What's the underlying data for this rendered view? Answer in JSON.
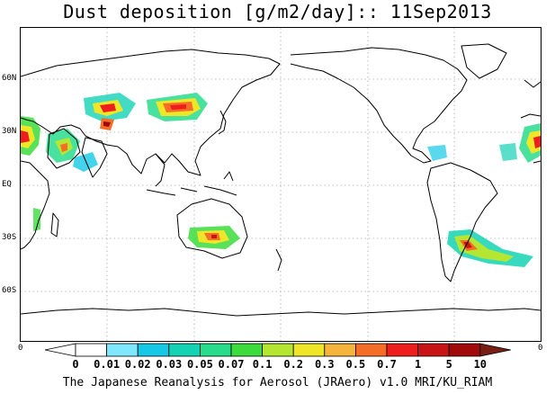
{
  "title": "Dust deposition [g/m2/day]:: 11Sep2013",
  "footer": "The Japanese Reanalysis for Aerosol (JRAero) v1.0 MRI/KU_RIAM",
  "lat_labels": [
    "60N",
    "30N",
    "EQ",
    "30S",
    "60S"
  ],
  "edge_labels": {
    "left": "0",
    "right": "0"
  },
  "colorbar": {
    "labels": [
      "0",
      "0.01",
      "0.02",
      "0.03",
      "0.05",
      "0.07",
      "0.1",
      "0.2",
      "0.3",
      "0.5",
      "0.7",
      "1",
      "5",
      "10"
    ],
    "colors": [
      "#ffffff",
      "#ffffff",
      "#7fe8ff",
      "#14c8e6",
      "#14d2b4",
      "#28dc8c",
      "#3cdc3c",
      "#b4e632",
      "#f0e628",
      "#f5b43c",
      "#f56e28",
      "#ee1e1e",
      "#c81414",
      "#a00a0a",
      "#781e14"
    ]
  },
  "colors": {
    "coast": "#000000",
    "grid": "#aaaaaa"
  }
}
